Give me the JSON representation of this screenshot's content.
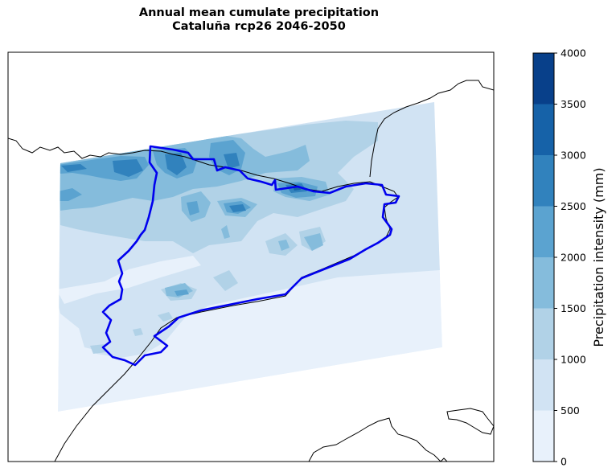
{
  "title": {
    "line1": "Annual mean cumulate precipitation",
    "line2": "Cataluña rcp26 2046-2050"
  },
  "colorbar": {
    "label": "Precipitation intensity (mm)",
    "ticks": [
      "0",
      "500",
      "1000",
      "1500",
      "2000",
      "2500",
      "3000",
      "3500",
      "4000"
    ],
    "levels": [
      0,
      500,
      1000,
      1500,
      2000,
      2500,
      3000,
      3500,
      4000
    ],
    "colors": [
      "#e8f1fb",
      "#d1e3f3",
      "#b1d2e7",
      "#85bcdc",
      "#5ba3d0",
      "#3182bd",
      "#1662a8",
      "#08408a"
    ]
  },
  "map": {
    "border_color": "#0000ee",
    "coast_color": "#000000"
  }
}
